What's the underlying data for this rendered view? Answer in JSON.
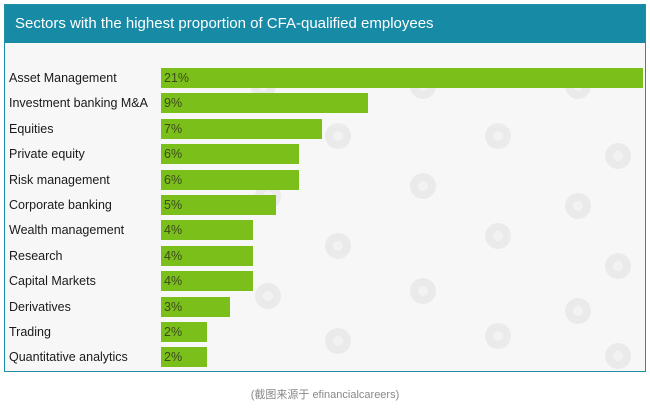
{
  "chart_data": {
    "type": "bar",
    "orientation": "horizontal",
    "title": "Sectors with the highest proportion of CFA-qualified employees",
    "categories": [
      "Asset Management",
      "Investment banking M&A",
      "Equities",
      "Private equity",
      "Risk management",
      "Corporate banking",
      "Wealth management",
      "Research",
      "Capital Markets",
      "Derivatives",
      "Trading",
      "Quantitative analytics"
    ],
    "values": [
      21,
      9,
      7,
      6,
      6,
      5,
      4,
      4,
      4,
      3,
      2,
      2
    ],
    "value_labels": [
      "21%",
      "9%",
      "7%",
      "6%",
      "6%",
      "5%",
      "4%",
      "4%",
      "4%",
      "3%",
      "2%",
      "2%"
    ],
    "unit": "%",
    "xlim": [
      0,
      21
    ],
    "grid": false,
    "legend": "none",
    "colors": {
      "bar": "#7bbf1b",
      "header": "#178aa6",
      "plot_background": "#f7f7f7"
    }
  },
  "caption": "(截图来源于 efinancialcareers)"
}
